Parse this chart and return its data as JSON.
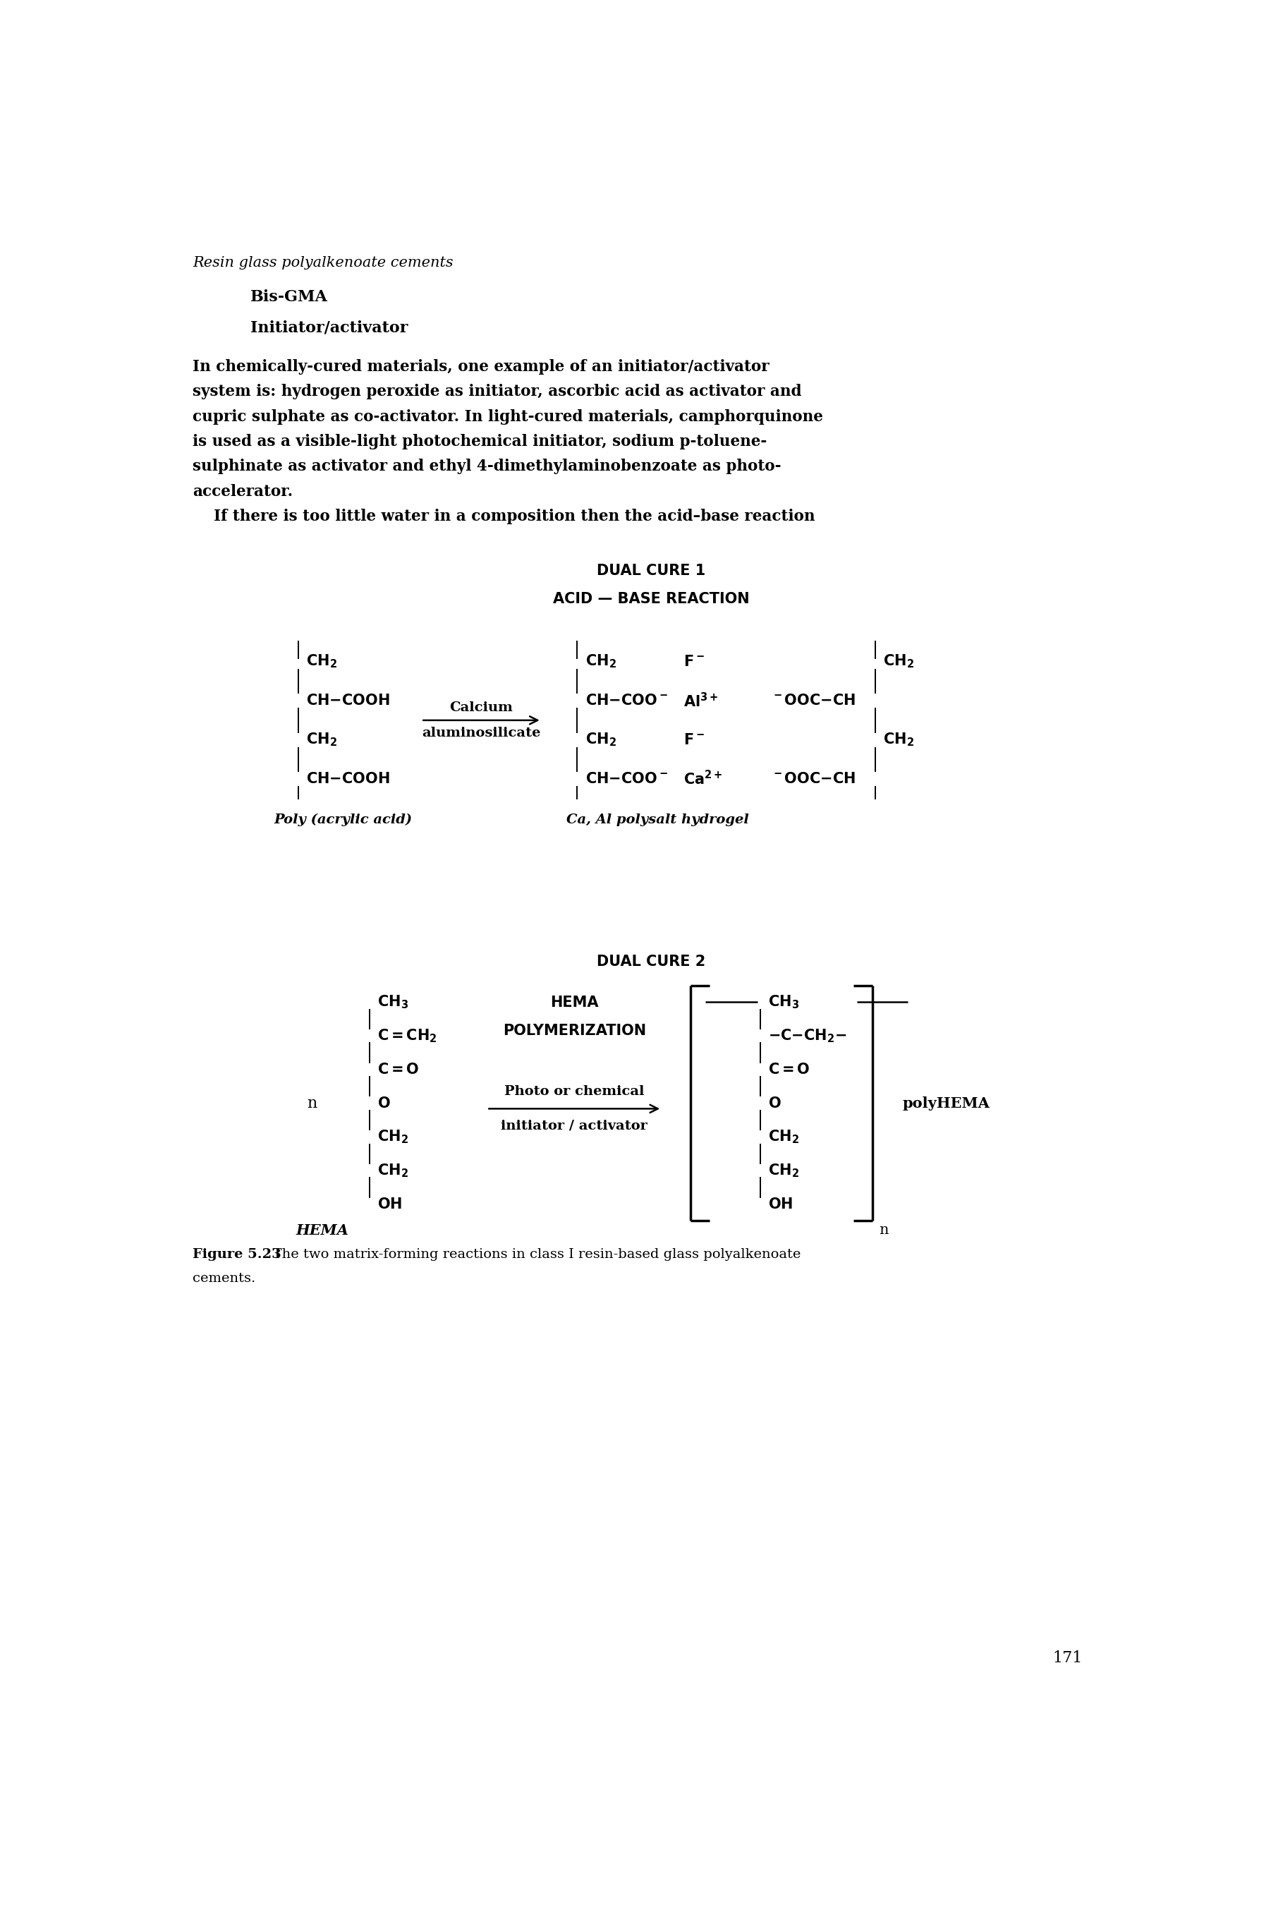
{
  "bg_color": "#ffffff",
  "header_italic": "Resin glass polyalkenoate cements",
  "header_bold1": "Bis-GMA",
  "header_bold2": "Initiator/activator",
  "body_lines": [
    "In chemically-cured materials, one example of an initiator/activator",
    "system is: hydrogen peroxide as initiator, ascorbic acid as activator and",
    "cupric sulphate as co-activator. In light-cured materials, camphorquinone",
    "is used as a visible-light photochemical initiator, sodium p-toluene-",
    "sulphinate as activator and ethyl 4-dimethylaminobenzoate as photo-",
    "accelerator."
  ],
  "body_line2": "    If there is too little water in a composition then the acid–base reaction",
  "dual_cure1_title": "DUAL CURE 1",
  "dual_cure1_sub": "ACID — BASE REACTION",
  "dual_cure2_title": "DUAL CURE 2",
  "hema_polymerization_line1": "HEMA",
  "hema_polymerization_line2": "POLYMERIZATION",
  "arrow_label1_line1": "Calcium",
  "arrow_label1_line2": "aluminosilicate",
  "arrow_label2_line1": "Photo or chemical",
  "arrow_label2_line2": "initiator / activator",
  "poly_acrylic": "Poly (acrylic acid)",
  "ca_al_product": "Ca, Al polysalt hydrogel",
  "hema_label": "HEMA",
  "n_label": "n",
  "poly_hema": "polyHEMA",
  "n_label2": "n",
  "figure_caption_bold": "Figure 5.23",
  "figure_caption_rest": "  The two matrix-forming reactions in class I resin-based glass polyalkenoate",
  "figure_caption_line2": "cements.",
  "page_number": "171"
}
